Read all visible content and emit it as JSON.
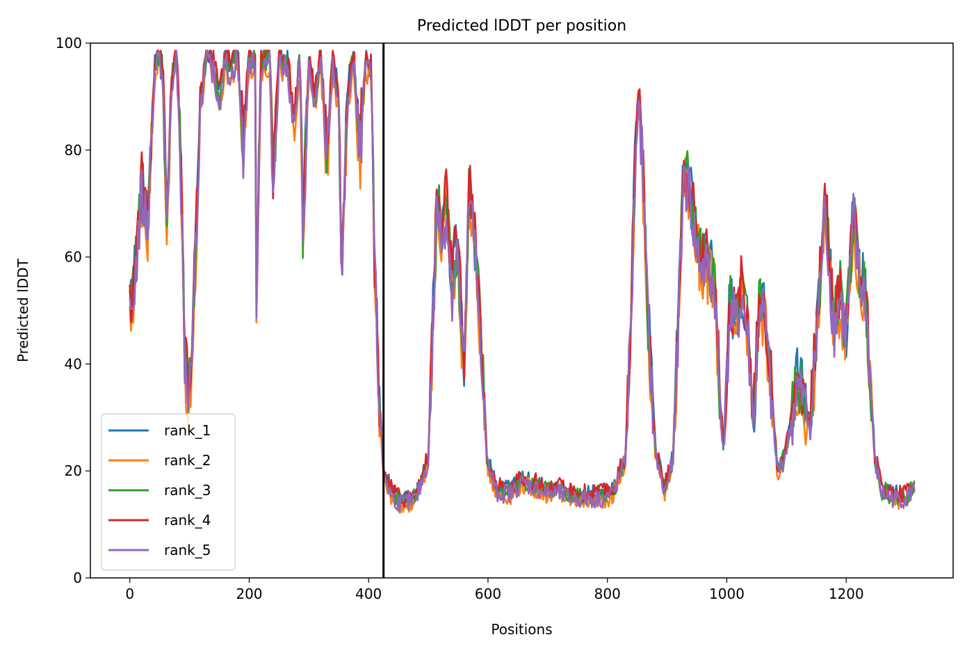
{
  "chart_data": {
    "type": "line",
    "title": "Predicted lDDT per position",
    "xlabel": "Positions",
    "ylabel": "Predicted lDDT",
    "xlim": [
      -66,
      1379
    ],
    "ylim": [
      0,
      100
    ],
    "xticks": [
      0,
      200,
      400,
      600,
      800,
      1000,
      1200
    ],
    "yticks": [
      0,
      20,
      40,
      60,
      80,
      100
    ],
    "grid": false,
    "legend_position": "lower-left",
    "vline_x": 425,
    "series": [
      {
        "name": "rank_1",
        "color": "#1f77b4",
        "offset": 1.5
      },
      {
        "name": "rank_2",
        "color": "#ff7f0e",
        "offset": -1.2
      },
      {
        "name": "rank_3",
        "color": "#2ca02c",
        "offset": 0.8
      },
      {
        "name": "rank_4",
        "color": "#d62728",
        "offset": 2.2
      },
      {
        "name": "rank_5",
        "color": "#9467bd",
        "offset": -0.5
      }
    ],
    "base_profile": [
      [
        0,
        47
      ],
      [
        10,
        58
      ],
      [
        20,
        72
      ],
      [
        30,
        66
      ],
      [
        40,
        92
      ],
      [
        45,
        98
      ],
      [
        55,
        95
      ],
      [
        62,
        66
      ],
      [
        70,
        92
      ],
      [
        78,
        97
      ],
      [
        85,
        80
      ],
      [
        92,
        40
      ],
      [
        98,
        34
      ],
      [
        104,
        37
      ],
      [
        110,
        60
      ],
      [
        118,
        88
      ],
      [
        128,
        97
      ],
      [
        140,
        95
      ],
      [
        150,
        89
      ],
      [
        160,
        97
      ],
      [
        170,
        94
      ],
      [
        180,
        98
      ],
      [
        190,
        80
      ],
      [
        200,
        97
      ],
      [
        210,
        96
      ],
      [
        212,
        54
      ],
      [
        220,
        96
      ],
      [
        235,
        97
      ],
      [
        240,
        72
      ],
      [
        250,
        97
      ],
      [
        265,
        95
      ],
      [
        275,
        84
      ],
      [
        285,
        97
      ],
      [
        290,
        65
      ],
      [
        300,
        96
      ],
      [
        310,
        88
      ],
      [
        320,
        97
      ],
      [
        330,
        78
      ],
      [
        340,
        97
      ],
      [
        350,
        88
      ],
      [
        355,
        56
      ],
      [
        365,
        90
      ],
      [
        375,
        97
      ],
      [
        385,
        78
      ],
      [
        395,
        97
      ],
      [
        405,
        93
      ],
      [
        410,
        58
      ],
      [
        418,
        32
      ],
      [
        422,
        26
      ],
      [
        425,
        20
      ],
      [
        440,
        15
      ],
      [
        460,
        14
      ],
      [
        480,
        15
      ],
      [
        500,
        22
      ],
      [
        510,
        55
      ],
      [
        515,
        72
      ],
      [
        522,
        62
      ],
      [
        530,
        70
      ],
      [
        540,
        54
      ],
      [
        548,
        62
      ],
      [
        555,
        48
      ],
      [
        560,
        38
      ],
      [
        568,
        72
      ],
      [
        578,
        62
      ],
      [
        588,
        45
      ],
      [
        598,
        22
      ],
      [
        615,
        16
      ],
      [
        640,
        16
      ],
      [
        655,
        18
      ],
      [
        680,
        17
      ],
      [
        700,
        16
      ],
      [
        720,
        16
      ],
      [
        740,
        15
      ],
      [
        760,
        15
      ],
      [
        790,
        15
      ],
      [
        810,
        16
      ],
      [
        830,
        22
      ],
      [
        840,
        50
      ],
      [
        848,
        83
      ],
      [
        853,
        89
      ],
      [
        858,
        80
      ],
      [
        868,
        48
      ],
      [
        880,
        24
      ],
      [
        895,
        16
      ],
      [
        910,
        22
      ],
      [
        920,
        52
      ],
      [
        928,
        76
      ],
      [
        938,
        72
      ],
      [
        948,
        63
      ],
      [
        960,
        58
      ],
      [
        970,
        58
      ],
      [
        980,
        54
      ],
      [
        990,
        30
      ],
      [
        995,
        24
      ],
      [
        1005,
        50
      ],
      [
        1015,
        47
      ],
      [
        1025,
        53
      ],
      [
        1035,
        46
      ],
      [
        1045,
        28
      ],
      [
        1055,
        53
      ],
      [
        1065,
        47
      ],
      [
        1075,
        33
      ],
      [
        1085,
        20
      ],
      [
        1095,
        22
      ],
      [
        1105,
        27
      ],
      [
        1118,
        36
      ],
      [
        1130,
        33
      ],
      [
        1140,
        28
      ],
      [
        1152,
        48
      ],
      [
        1165,
        70
      ],
      [
        1172,
        57
      ],
      [
        1180,
        47
      ],
      [
        1190,
        53
      ],
      [
        1200,
        45
      ],
      [
        1212,
        67
      ],
      [
        1222,
        56
      ],
      [
        1232,
        53
      ],
      [
        1238,
        42
      ],
      [
        1248,
        22
      ],
      [
        1260,
        16
      ],
      [
        1280,
        15
      ],
      [
        1300,
        15
      ],
      [
        1315,
        17
      ]
    ]
  }
}
